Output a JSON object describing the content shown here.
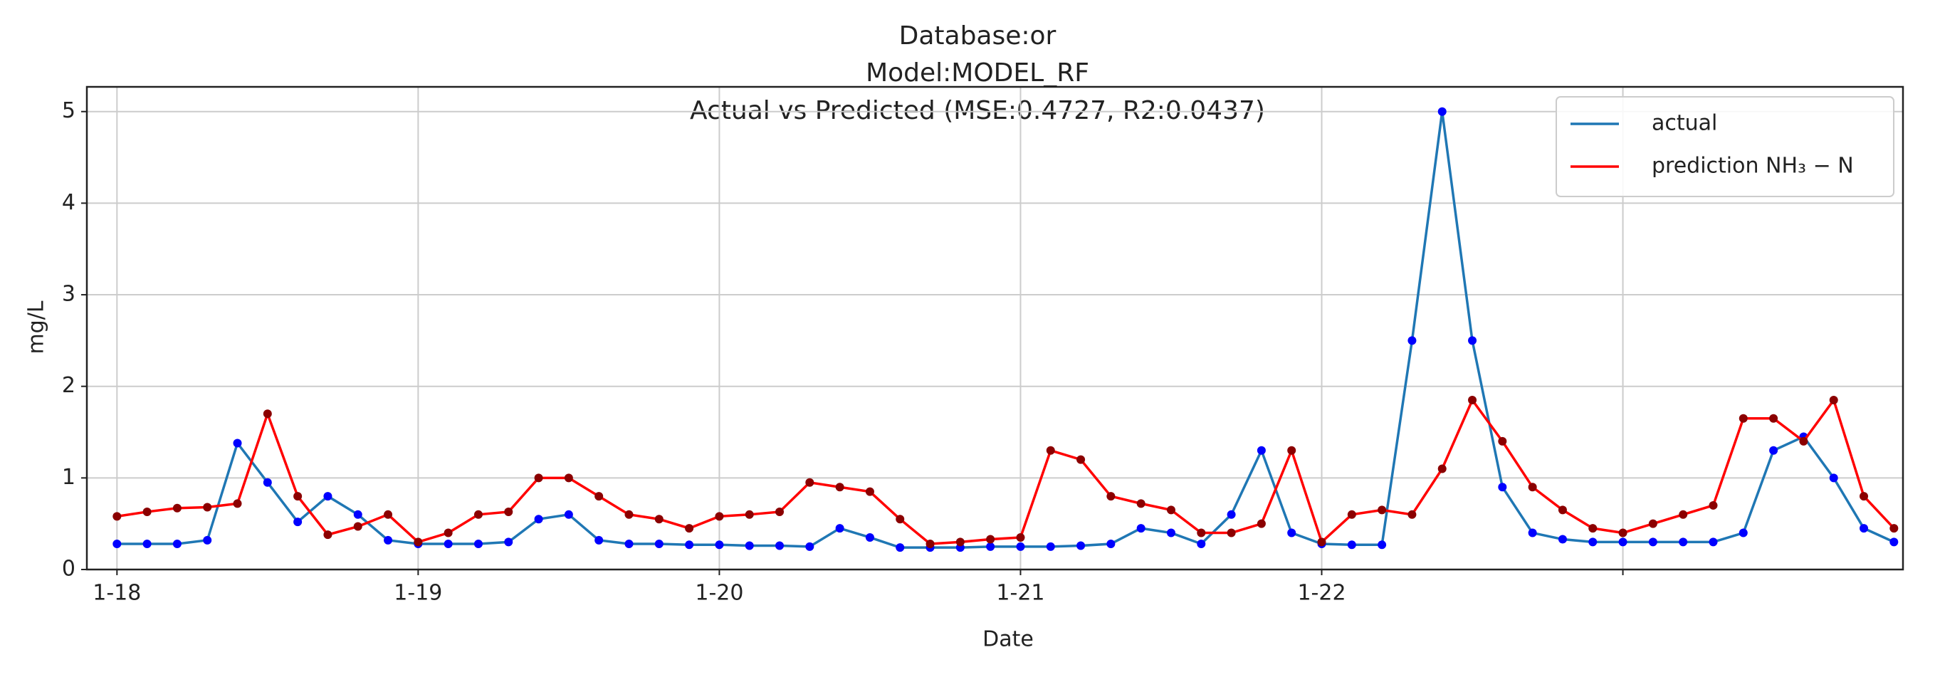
{
  "chart_data": {
    "type": "line",
    "title": [
      "Database:or",
      "Model:MODEL_RF",
      "Actual vs Predicted (MSE:0.4727, R2:0.0437)"
    ],
    "x_label": "Date",
    "y_label": "mg/L",
    "x": [
      0,
      0.1,
      0.2,
      0.3,
      0.4,
      0.5,
      0.6,
      0.7,
      0.8,
      0.9,
      1,
      1.1,
      1.2,
      1.3,
      1.4,
      1.5,
      1.6,
      1.7,
      1.8,
      1.9,
      2,
      2.1,
      2.2,
      2.3,
      2.4,
      2.5,
      2.6,
      2.7,
      2.8,
      2.9,
      3,
      3.1,
      3.2,
      3.3,
      3.4,
      3.5,
      3.6,
      3.7,
      3.8,
      3.9,
      4,
      4.1,
      4.2,
      4.3,
      4.4,
      4.5,
      4.6,
      4.7,
      4.8,
      4.9,
      5,
      5.1,
      5.2,
      5.3,
      5.4,
      5.5,
      5.6,
      5.7,
      5.8,
      5.9
    ],
    "series": [
      {
        "name": "actual",
        "color": "#1f77b4",
        "marker_color": "#0000ff",
        "values": [
          0.28,
          0.28,
          0.28,
          0.32,
          1.38,
          0.95,
          0.52,
          0.8,
          0.6,
          0.32,
          0.28,
          0.28,
          0.28,
          0.3,
          0.55,
          0.6,
          0.32,
          0.28,
          0.28,
          0.27,
          0.27,
          0.26,
          0.26,
          0.25,
          0.45,
          0.35,
          0.24,
          0.24,
          0.24,
          0.25,
          0.25,
          0.25,
          0.26,
          0.28,
          0.45,
          0.4,
          0.28,
          0.6,
          1.3,
          0.4,
          0.28,
          0.27,
          0.27,
          2.5,
          5.0,
          2.5,
          0.9,
          0.4,
          0.33,
          0.3,
          0.3,
          0.3,
          0.3,
          0.3,
          0.4,
          1.3,
          1.45,
          1.0,
          0.45,
          0.3
        ]
      },
      {
        "name": "prediction NH₃ − N",
        "color": "#ff0000",
        "marker_color": "#8b0000",
        "values": [
          0.58,
          0.63,
          0.67,
          0.68,
          0.72,
          1.7,
          0.8,
          0.38,
          0.47,
          0.6,
          0.3,
          0.4,
          0.6,
          0.63,
          1.0,
          1.0,
          0.8,
          0.6,
          0.55,
          0.45,
          0.58,
          0.6,
          0.63,
          0.95,
          0.9,
          0.85,
          0.55,
          0.28,
          0.3,
          0.33,
          0.35,
          1.3,
          1.2,
          0.8,
          0.72,
          0.65,
          0.4,
          0.4,
          0.5,
          1.3,
          0.3,
          0.6,
          0.65,
          0.6,
          1.1,
          1.85,
          1.4,
          0.9,
          0.65,
          0.45,
          0.4,
          0.5,
          0.6,
          0.7,
          1.65,
          1.65,
          1.4,
          1.85,
          0.8,
          0.45
        ]
      }
    ],
    "xlim": [
      -0.1,
      5.93
    ],
    "ylim": [
      0,
      5.27
    ],
    "xticks": [
      {
        "value": 0,
        "label": "1-18"
      },
      {
        "value": 1,
        "label": "1-19"
      },
      {
        "value": 2,
        "label": "1-20"
      },
      {
        "value": 3,
        "label": "1-21"
      },
      {
        "value": 4,
        "label": "1-22"
      },
      {
        "value": 5,
        "label": null
      }
    ],
    "yticks": [
      0,
      1,
      2,
      3,
      4,
      5
    ],
    "grid": true,
    "legend": "upper right"
  }
}
